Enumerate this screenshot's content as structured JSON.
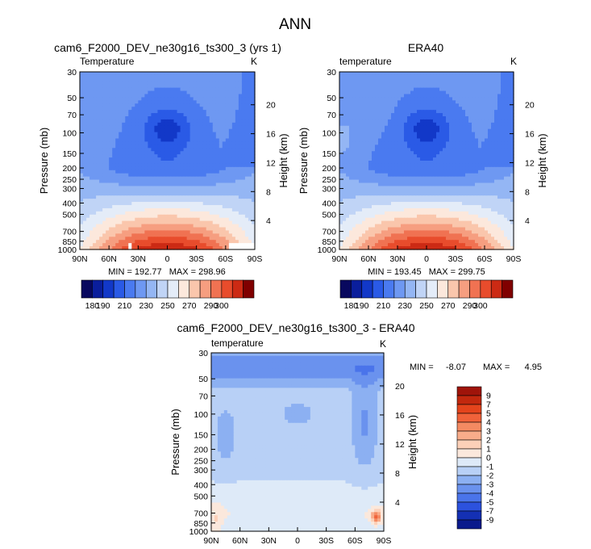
{
  "figure_title": "ANN",
  "chart_data": [
    {
      "type": "heatmap",
      "title": "cam6_F2000_DEV_ne30g16_ts300_3 (yrs 1)",
      "subtitle": "Temperature",
      "units": "K",
      "xlabel": "",
      "ylabel": "Pressure (mb)",
      "ylabel_right": "Height (km)",
      "x_ticks": [
        "90N",
        "60N",
        "30N",
        "0",
        "30S",
        "60S",
        "90S"
      ],
      "y_ticks": [
        30,
        50,
        70,
        100,
        150,
        200,
        250,
        300,
        400,
        500,
        700,
        850,
        1000
      ],
      "height_ticks": [
        4,
        8,
        12,
        16,
        20
      ],
      "y_scale": "log",
      "ylim": [
        1000,
        30
      ],
      "stats": "MIN = 192.77   MAX = 298.96",
      "min": 192.77,
      "max": 298.96,
      "field": "model"
    },
    {
      "type": "heatmap",
      "title": "ERA40",
      "subtitle": "temperature",
      "units": "K",
      "xlabel": "",
      "ylabel": "Pressure (mb)",
      "ylabel_right": "Height (km)",
      "x_ticks": [
        "90N",
        "60N",
        "30N",
        "0",
        "30S",
        "60S",
        "90S"
      ],
      "y_ticks": [
        30,
        50,
        70,
        100,
        150,
        200,
        250,
        300,
        400,
        500,
        700,
        850,
        1000
      ],
      "height_ticks": [
        4,
        8,
        12,
        16,
        20
      ],
      "y_scale": "log",
      "ylim": [
        1000,
        30
      ],
      "stats": "MIN = 193.45   MAX = 299.75",
      "min": 193.45,
      "max": 299.75,
      "field": "obs"
    },
    {
      "type": "heatmap",
      "title": "cam6_F2000_DEV_ne30g16_ts300_3 - ERA40",
      "subtitle": "temperature",
      "units": "K",
      "xlabel": "",
      "ylabel": "Pressure (mb)",
      "ylabel_right": "Height (km)",
      "x_ticks": [
        "90N",
        "60N",
        "30N",
        "0",
        "30S",
        "60S",
        "90S"
      ],
      "y_ticks": [
        30,
        50,
        70,
        100,
        150,
        200,
        250,
        300,
        400,
        500,
        700,
        850,
        1000
      ],
      "height_ticks": [
        4,
        8,
        12,
        16,
        20
      ],
      "y_scale": "log",
      "ylim": [
        1000,
        30
      ],
      "stats_min_label": "MIN =",
      "stats_min": "-8.07",
      "stats_max_label": "MAX =",
      "stats_max": "4.95",
      "min": -8.07,
      "max": 4.95,
      "field": "diff"
    }
  ],
  "colorbar_temperature": {
    "levels": [
      180,
      190,
      200,
      210,
      220,
      230,
      240,
      250,
      260,
      270,
      280,
      290,
      300
    ],
    "labels": [
      "180",
      "190",
      "210",
      "230",
      "250",
      "270",
      "290",
      "300"
    ],
    "colors": [
      "#08085e",
      "#0a1e9c",
      "#1238c8",
      "#2a5ae6",
      "#4a7af0",
      "#6e98f2",
      "#94b6f4",
      "#c0d4f6",
      "#e4ecf8",
      "#fce8dc",
      "#fac6ac",
      "#f69e80",
      "#f07252",
      "#e84c2c",
      "#cc2a14",
      "#800000"
    ]
  },
  "colorbar_difference": {
    "labels": [
      "9",
      "7",
      "5",
      "4",
      "3",
      "2",
      "1",
      "0",
      "-1",
      "-2",
      "-3",
      "-4",
      "-5",
      "-7",
      "-9"
    ],
    "colors": [
      "#a0140a",
      "#c2280e",
      "#e4441c",
      "#f0623a",
      "#f48a62",
      "#f8ac8a",
      "#fcd0b8",
      "#fbe8dc",
      "#deeaf8",
      "#b8d0f6",
      "#8cb0f2",
      "#6a92ee",
      "#4a74ea",
      "#2c52de",
      "#1430b4",
      "#0a1a8c"
    ]
  }
}
